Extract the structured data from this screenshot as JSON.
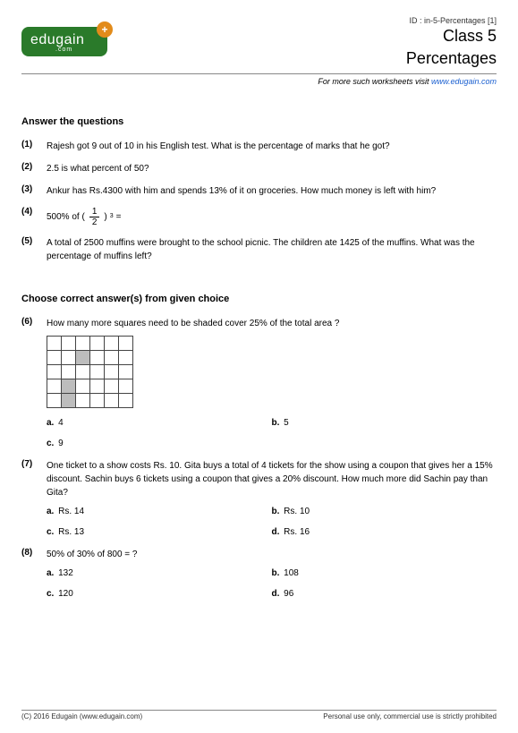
{
  "meta": {
    "id_line": "ID : in-5-Percentages [1]",
    "class_line": "Class 5",
    "topic": "Percentages",
    "sub_prefix": "For more such worksheets visit ",
    "sub_link": "www.edugain.com"
  },
  "logo": {
    "brand": "edugain",
    "dotcom": ".com",
    "plus": "+"
  },
  "section1": {
    "title": "Answer the questions"
  },
  "section2": {
    "title": "Choose correct answer(s) from given choice"
  },
  "q1": {
    "num": "(1)",
    "text": "Rajesh got 9 out of 10 in his English test. What is the percentage of marks that he got?"
  },
  "q2": {
    "num": "(2)",
    "text": "2.5 is what percent of 50?"
  },
  "q3": {
    "num": "(3)",
    "text": "Ankur has Rs.4300 with him and spends 13% of it on groceries. How much money is left with him?"
  },
  "q4": {
    "num": "(4)",
    "lead": "500% of (",
    "frac_top": "1",
    "frac_bot": "2",
    "tail_base": " )",
    "tail_sup": "3",
    "tail_eq": " ="
  },
  "q5": {
    "num": "(5)",
    "text": "A total of 2500 muffins were brought to the school picnic. The children ate 1425 of the muffins. What was the percentage of muffins left?"
  },
  "q6": {
    "num": "(6)",
    "text": "How many more squares need to be shaded cover 25% of the total area ?",
    "grid": {
      "cols": 6,
      "rows": 5,
      "shaded_cells": [
        8,
        19,
        25
      ]
    },
    "a_lbl": "a.",
    "a": " 4",
    "b_lbl": "b.",
    "b": " 5",
    "c_lbl": "c.",
    "c": " 9"
  },
  "q7": {
    "num": "(7)",
    "text": "One ticket to a show costs Rs. 10. Gita buys a total of 4 tickets for the show using a coupon that gives her a 15% discount. Sachin buys 6 tickets using a coupon that gives a 20% discount. How much more did Sachin pay than Gita?",
    "a_lbl": "a.",
    "a": " Rs. 14",
    "b_lbl": "b.",
    "b": " Rs. 10",
    "c_lbl": "c.",
    "c": " Rs. 13",
    "d_lbl": "d.",
    "d": " Rs. 16"
  },
  "q8": {
    "num": "(8)",
    "text": "50% of 30% of 800 = ?",
    "a_lbl": "a.",
    "a": " 132",
    "b_lbl": "b.",
    "b": " 108",
    "c_lbl": "c.",
    "c": " 120",
    "d_lbl": "d.",
    "d": " 96"
  },
  "footer": {
    "left": "(C) 2016 Edugain (www.edugain.com)",
    "right": "Personal use only, commercial use is strictly prohibited"
  },
  "style": {
    "page_bg": "#ffffff",
    "text_color": "#000000",
    "logo_bg": "#2a7a2a",
    "logo_plus_bg": "#e28b1a",
    "link_color": "#1a5fd0",
    "rule_color": "#888888",
    "grid_border": "#444444",
    "shaded_fill": "#bdbdbd",
    "base_font_size": 10,
    "title_font_size": 18
  }
}
